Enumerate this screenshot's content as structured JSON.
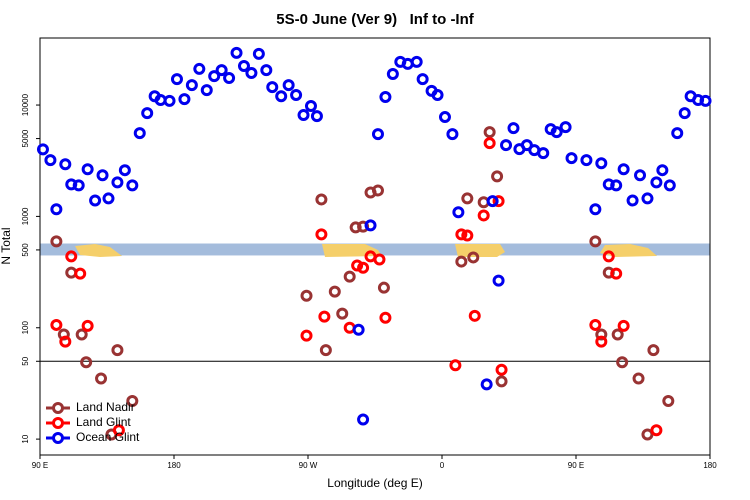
{
  "chart_data": {
    "type": "scatter",
    "title": "5S-0 June (Ver 9)   Inf to -Inf",
    "x_label": "Longitude (deg E)",
    "y_label": "N Total",
    "xlim": [
      90,
      540
    ],
    "xticks": [
      {
        "value": 90,
        "label": "90 E"
      },
      180,
      {
        "value": 270,
        "label": "90 W"
      },
      {
        "value": 360,
        "label": "0"
      },
      {
        "value": 450,
        "label": "90 E"
      },
      {
        "value": 540,
        "label": "180"
      }
    ],
    "ylim": [
      7.2,
      40000
    ],
    "yscale": "log",
    "yticks": [
      10,
      50,
      100,
      500,
      1000,
      5000,
      10000
    ],
    "hline": 50,
    "band": [
      446,
      571
    ],
    "band_color": "#a4bcdc",
    "legend": "bottom-left",
    "series": [
      {
        "name": "Land Nadir",
        "color": "#993333",
        "x": [
          101,
          106,
          111,
          118,
          121,
          131,
          138,
          142,
          152,
          269,
          279,
          282,
          288,
          293,
          298,
          302,
          307,
          312,
          317,
          321,
          373,
          377,
          381,
          388,
          392,
          397,
          400,
          463,
          467,
          472,
          478,
          481,
          492,
          498,
          502,
          512
        ],
        "values": [
          596,
          87,
          313,
          87,
          49,
          35,
          11,
          63,
          22,
          194,
          1420,
          63,
          211,
          134,
          288,
          796,
          810,
          1640,
          1710,
          229,
          393,
          1450,
          428,
          1340,
          5710,
          2290,
          33,
          596,
          87,
          313,
          87,
          49,
          35,
          11,
          63,
          22
        ]
      },
      {
        "name": "Land Glint",
        "color": "#ff0000",
        "x": [
          101,
          107,
          111,
          117,
          122,
          143,
          269,
          279,
          281,
          298,
          303,
          307,
          312,
          318,
          322,
          369,
          373,
          377,
          382,
          388,
          392,
          398,
          400,
          463,
          467,
          472,
          477,
          482,
          504
        ],
        "values": [
          106,
          75,
          437,
          306,
          104,
          12,
          85,
          689,
          126,
          100,
          362,
          346,
          437,
          410,
          123,
          46,
          689,
          673,
          128,
          1020,
          4550,
          1370,
          42,
          106,
          75,
          437,
          306,
          104,
          12
        ]
      },
      {
        "name": "Ocean Glint",
        "color": "#0000ee",
        "x": [
          92,
          97,
          101,
          107,
          111,
          116,
          122,
          127,
          132,
          136,
          142,
          147,
          152,
          157,
          162,
          167,
          171,
          177,
          182,
          187,
          192,
          197,
          202,
          207,
          212,
          217,
          222,
          227,
          232,
          237,
          242,
          246,
          252,
          257,
          262,
          267,
          272,
          276,
          304,
          307,
          312,
          317,
          322,
          327,
          332,
          337,
          343,
          347,
          353,
          357,
          362,
          367,
          371,
          390,
          394,
          398,
          403,
          408,
          412,
          417,
          422,
          428,
          433,
          437,
          443,
          447,
          457,
          463,
          467,
          472,
          477,
          482,
          488,
          493,
          498,
          504,
          508,
          513,
          518,
          523,
          527,
          532,
          537
        ],
        "values": [
          4000,
          3200,
          1160,
          2940,
          1940,
          1900,
          2650,
          1390,
          2340,
          1450,
          2020,
          2600,
          1900,
          5600,
          8470,
          12000,
          11100,
          10900,
          17100,
          11300,
          15100,
          21100,
          13600,
          18200,
          20600,
          17500,
          29400,
          22400,
          19400,
          28800,
          20600,
          14500,
          12000,
          15100,
          12300,
          8130,
          9800,
          7960,
          96,
          15,
          830,
          5480,
          11800,
          19000,
          24400,
          23400,
          24400,
          17100,
          13400,
          12300,
          7800,
          5480,
          1090,
          31,
          1370,
          265,
          4370,
          6210,
          4020,
          4370,
          3940,
          3700,
          6080,
          5710,
          6340,
          3340,
          3200,
          1160,
          3000,
          1940,
          1900,
          2650,
          1390,
          2340,
          1450,
          2020,
          2600,
          1900,
          5600,
          8470,
          12000,
          11100,
          10900
        ]
      }
    ]
  }
}
